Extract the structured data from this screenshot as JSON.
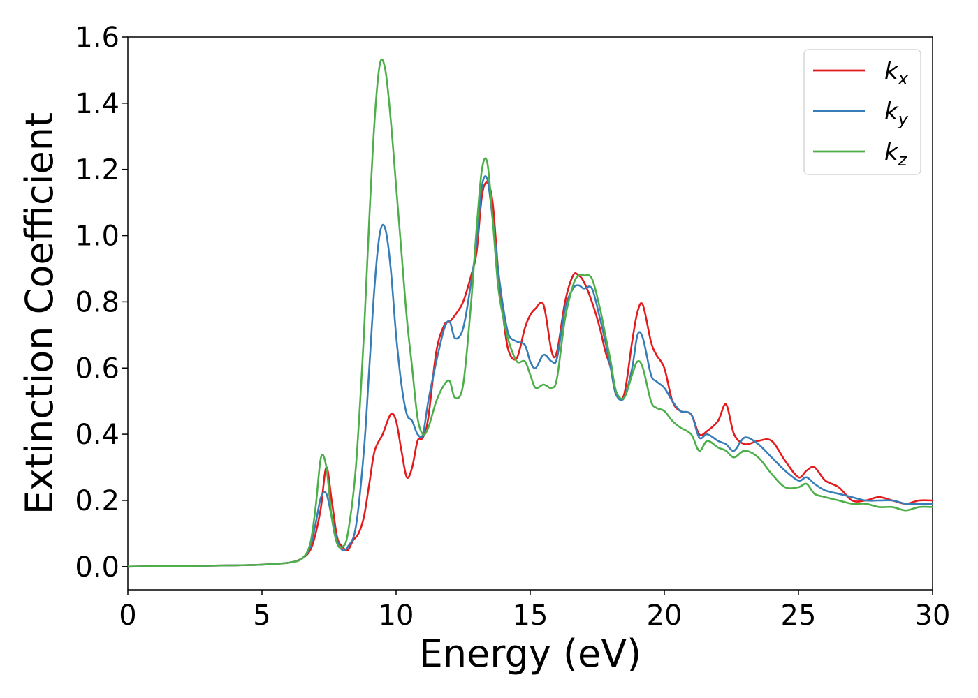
{
  "chart_data": {
    "type": "line",
    "xlabel": "Energy (eV)",
    "ylabel": "Extinction Coefficient",
    "xlim": [
      0,
      30
    ],
    "ylim": [
      -0.07,
      1.6
    ],
    "xticks": [
      0,
      5,
      10,
      15,
      20,
      25,
      30
    ],
    "xtick_labels": [
      "0",
      "5",
      "10",
      "15",
      "20",
      "25",
      "30"
    ],
    "yticks": [
      0.0,
      0.2,
      0.4,
      0.6,
      0.8,
      1.0,
      1.2,
      1.4,
      1.6
    ],
    "ytick_labels": [
      "0.0",
      "0.2",
      "0.4",
      "0.6",
      "0.8",
      "1.0",
      "1.2",
      "1.4",
      "1.6"
    ],
    "grid": false,
    "legend_position": "top-right",
    "series": [
      {
        "name": "k",
        "subscript": "x",
        "color": "#e41a1c",
        "x": [
          0,
          2,
          4,
          5,
          6,
          6.5,
          6.8,
          7.0,
          7.2,
          7.4,
          7.6,
          7.8,
          8.0,
          8.2,
          8.4,
          8.6,
          8.8,
          9.0,
          9.2,
          9.5,
          9.8,
          10.0,
          10.2,
          10.4,
          10.6,
          10.8,
          11.0,
          11.2,
          11.5,
          11.8,
          12.0,
          12.2,
          12.5,
          12.8,
          13.0,
          13.2,
          13.4,
          13.6,
          13.8,
          14.0,
          14.2,
          14.5,
          14.8,
          15.0,
          15.2,
          15.5,
          15.8,
          16.0,
          16.3,
          16.6,
          16.8,
          17.0,
          17.3,
          17.6,
          17.8,
          18.0,
          18.2,
          18.5,
          18.8,
          19.0,
          19.2,
          19.5,
          19.7,
          20.0,
          20.3,
          20.6,
          21.0,
          21.3,
          21.6,
          22.0,
          22.3,
          22.6,
          23.0,
          23.5,
          24.0,
          24.5,
          25.0,
          25.3,
          25.6,
          26.0,
          26.5,
          27.0,
          27.5,
          28.0,
          28.5,
          29.0,
          29.5,
          30.0
        ],
        "y": [
          0.0,
          0.002,
          0.004,
          0.006,
          0.012,
          0.025,
          0.05,
          0.1,
          0.18,
          0.3,
          0.2,
          0.09,
          0.06,
          0.05,
          0.08,
          0.1,
          0.15,
          0.25,
          0.35,
          0.4,
          0.46,
          0.44,
          0.35,
          0.27,
          0.3,
          0.38,
          0.39,
          0.45,
          0.65,
          0.73,
          0.74,
          0.76,
          0.8,
          0.88,
          0.95,
          1.12,
          1.16,
          1.1,
          0.9,
          0.75,
          0.65,
          0.63,
          0.72,
          0.76,
          0.78,
          0.79,
          0.65,
          0.65,
          0.8,
          0.88,
          0.88,
          0.86,
          0.8,
          0.72,
          0.65,
          0.6,
          0.52,
          0.52,
          0.68,
          0.77,
          0.79,
          0.68,
          0.64,
          0.6,
          0.5,
          0.47,
          0.46,
          0.4,
          0.41,
          0.44,
          0.49,
          0.4,
          0.37,
          0.38,
          0.38,
          0.32,
          0.27,
          0.29,
          0.3,
          0.26,
          0.24,
          0.2,
          0.2,
          0.21,
          0.2,
          0.19,
          0.2,
          0.2
        ]
      },
      {
        "name": "k",
        "subscript": "y",
        "color": "#377eb8",
        "x": [
          0,
          2,
          4,
          5,
          6,
          6.5,
          6.8,
          7.0,
          7.2,
          7.4,
          7.6,
          7.8,
          8.0,
          8.2,
          8.5,
          8.8,
          9.0,
          9.2,
          9.4,
          9.6,
          9.8,
          10.0,
          10.2,
          10.4,
          10.6,
          10.8,
          11.0,
          11.2,
          11.5,
          11.8,
          12.0,
          12.2,
          12.5,
          12.8,
          13.0,
          13.2,
          13.4,
          13.6,
          13.8,
          14.0,
          14.2,
          14.5,
          14.8,
          15.0,
          15.2,
          15.5,
          15.8,
          16.0,
          16.3,
          16.6,
          16.8,
          17.0,
          17.3,
          17.6,
          17.8,
          18.0,
          18.2,
          18.5,
          18.8,
          19.0,
          19.2,
          19.5,
          19.7,
          20.0,
          20.3,
          20.6,
          21.0,
          21.3,
          21.6,
          22.0,
          22.3,
          22.6,
          23.0,
          23.5,
          24.0,
          24.5,
          25.0,
          25.3,
          25.6,
          26.0,
          26.5,
          27.0,
          27.5,
          28.0,
          28.5,
          29.0,
          29.5,
          30.0
        ],
        "y": [
          0.0,
          0.002,
          0.004,
          0.006,
          0.012,
          0.025,
          0.06,
          0.13,
          0.21,
          0.22,
          0.15,
          0.08,
          0.05,
          0.06,
          0.12,
          0.35,
          0.6,
          0.85,
          1.01,
          1.02,
          0.9,
          0.7,
          0.55,
          0.46,
          0.44,
          0.4,
          0.4,
          0.5,
          0.62,
          0.72,
          0.74,
          0.69,
          0.72,
          0.86,
          0.98,
          1.15,
          1.17,
          1.05,
          0.9,
          0.78,
          0.7,
          0.68,
          0.67,
          0.62,
          0.6,
          0.64,
          0.62,
          0.63,
          0.78,
          0.84,
          0.85,
          0.84,
          0.84,
          0.75,
          0.68,
          0.6,
          0.52,
          0.51,
          0.6,
          0.7,
          0.69,
          0.58,
          0.56,
          0.54,
          0.5,
          0.47,
          0.46,
          0.39,
          0.4,
          0.38,
          0.37,
          0.35,
          0.39,
          0.37,
          0.33,
          0.29,
          0.26,
          0.27,
          0.25,
          0.23,
          0.22,
          0.21,
          0.2,
          0.2,
          0.2,
          0.19,
          0.19,
          0.19
        ]
      },
      {
        "name": "k",
        "subscript": "z",
        "color": "#4daf4a",
        "x": [
          0,
          2,
          4,
          5,
          6,
          6.5,
          6.8,
          7.0,
          7.2,
          7.4,
          7.6,
          7.8,
          8.0,
          8.2,
          8.5,
          8.8,
          9.0,
          9.2,
          9.4,
          9.6,
          9.8,
          10.0,
          10.2,
          10.4,
          10.6,
          10.8,
          11.0,
          11.2,
          11.5,
          11.8,
          12.0,
          12.2,
          12.5,
          12.8,
          13.0,
          13.2,
          13.4,
          13.6,
          13.8,
          14.0,
          14.2,
          14.5,
          14.8,
          15.0,
          15.2,
          15.5,
          15.8,
          16.0,
          16.3,
          16.6,
          16.8,
          17.0,
          17.3,
          17.6,
          17.8,
          18.0,
          18.2,
          18.5,
          18.8,
          19.0,
          19.2,
          19.5,
          19.7,
          20.0,
          20.3,
          20.6,
          21.0,
          21.3,
          21.6,
          22.0,
          22.3,
          22.6,
          23.0,
          23.5,
          24.0,
          24.5,
          25.0,
          25.3,
          25.6,
          26.0,
          26.5,
          27.0,
          27.5,
          28.0,
          28.5,
          29.0,
          29.5,
          30.0
        ],
        "y": [
          0.0,
          0.002,
          0.004,
          0.006,
          0.012,
          0.025,
          0.07,
          0.18,
          0.33,
          0.3,
          0.15,
          0.07,
          0.06,
          0.1,
          0.3,
          0.7,
          1.05,
          1.35,
          1.52,
          1.5,
          1.35,
          1.15,
          0.95,
          0.75,
          0.6,
          0.45,
          0.4,
          0.42,
          0.5,
          0.55,
          0.56,
          0.51,
          0.55,
          0.8,
          1.02,
          1.2,
          1.22,
          1.05,
          0.85,
          0.75,
          0.68,
          0.62,
          0.62,
          0.58,
          0.54,
          0.55,
          0.54,
          0.57,
          0.75,
          0.85,
          0.88,
          0.88,
          0.87,
          0.78,
          0.7,
          0.62,
          0.53,
          0.51,
          0.58,
          0.62,
          0.6,
          0.5,
          0.48,
          0.47,
          0.44,
          0.42,
          0.4,
          0.35,
          0.38,
          0.36,
          0.35,
          0.33,
          0.35,
          0.33,
          0.28,
          0.24,
          0.24,
          0.25,
          0.22,
          0.21,
          0.2,
          0.19,
          0.19,
          0.18,
          0.18,
          0.17,
          0.18,
          0.18
        ]
      }
    ]
  }
}
